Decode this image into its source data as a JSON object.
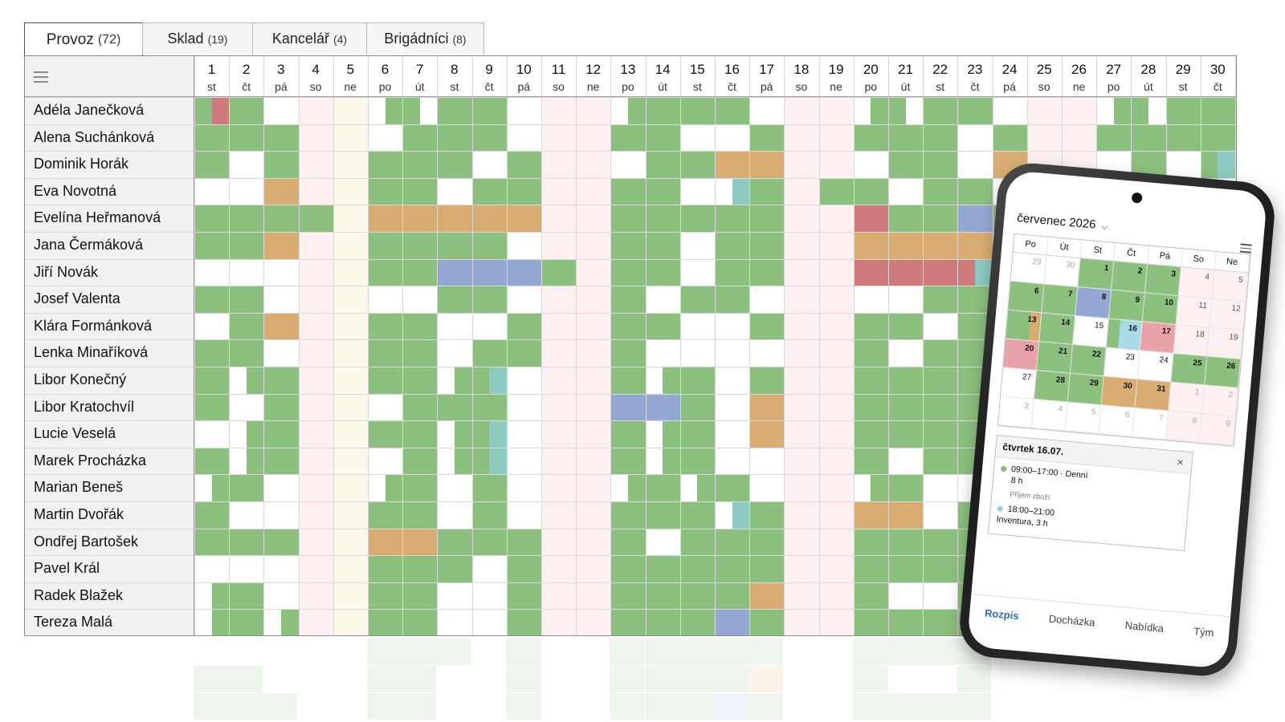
{
  "tabs": [
    {
      "label": "Provoz",
      "count": "(72)",
      "active": true
    },
    {
      "label": "Sklad",
      "count": "(19)",
      "active": false
    },
    {
      "label": "Kancelář",
      "count": "(4)",
      "active": false
    },
    {
      "label": "Brigádníci",
      "count": "(8)",
      "active": false
    }
  ],
  "grid": {
    "days": [
      {
        "num": "1",
        "wd": "st"
      },
      {
        "num": "2",
        "wd": "čt"
      },
      {
        "num": "3",
        "wd": "pá"
      },
      {
        "num": "4",
        "wd": "so"
      },
      {
        "num": "5",
        "wd": "ne"
      },
      {
        "num": "6",
        "wd": "po"
      },
      {
        "num": "7",
        "wd": "út"
      },
      {
        "num": "8",
        "wd": "st"
      },
      {
        "num": "9",
        "wd": "čt"
      },
      {
        "num": "10",
        "wd": "pá"
      },
      {
        "num": "11",
        "wd": "so"
      },
      {
        "num": "12",
        "wd": "ne"
      },
      {
        "num": "13",
        "wd": "po"
      },
      {
        "num": "14",
        "wd": "út"
      },
      {
        "num": "15",
        "wd": "st"
      },
      {
        "num": "16",
        "wd": "čt"
      },
      {
        "num": "17",
        "wd": "pá"
      },
      {
        "num": "18",
        "wd": "so"
      },
      {
        "num": "19",
        "wd": "ne"
      },
      {
        "num": "20",
        "wd": "po"
      },
      {
        "num": "21",
        "wd": "út"
      },
      {
        "num": "22",
        "wd": "st"
      },
      {
        "num": "23",
        "wd": "čt"
      },
      {
        "num": "24",
        "wd": "pá"
      },
      {
        "num": "25",
        "wd": "so"
      },
      {
        "num": "26",
        "wd": "ne"
      },
      {
        "num": "27",
        "wd": "po"
      },
      {
        "num": "28",
        "wd": "út"
      },
      {
        "num": "29",
        "wd": "st"
      },
      {
        "num": "30",
        "wd": "čt"
      }
    ],
    "colors": {
      "G": "#8cc07e",
      "O": "#d9ad72",
      "R": "#cf7b7b",
      "B": "#93a8d2",
      "T": "#8ccac2",
      "weekend": "#fcf0f0",
      "holiday": "#fcf8ea"
    },
    "rows": [
      {
        "name": "Adéla Janečková",
        "cells": [
          "HRR",
          "G",
          "",
          "",
          "",
          "gG",
          "Gg",
          "G",
          "G",
          "",
          "",
          "",
          "gG",
          "G",
          "G",
          "G",
          "",
          "",
          "",
          "gG",
          "Gg",
          "G",
          "G",
          "",
          "",
          "",
          "gG",
          "Gg",
          "G",
          "G"
        ]
      },
      {
        "name": "Alena Suchánková",
        "cells": [
          "G",
          "G",
          "G",
          "",
          "",
          "",
          "G",
          "G",
          "G",
          "",
          "",
          "",
          "G",
          "G",
          "",
          "",
          "G",
          "",
          "",
          "G",
          "G",
          "G",
          "",
          "G",
          "",
          "",
          "G",
          "G",
          "G",
          "G"
        ]
      },
      {
        "name": "Dominik Horák",
        "cells": [
          "G",
          "",
          "G",
          "",
          "",
          "G",
          "G",
          "G",
          "",
          "G",
          "",
          "",
          "",
          "G",
          "G",
          "O",
          "O",
          "",
          "",
          "",
          "G",
          "G",
          "",
          "O",
          "",
          "",
          "",
          "G",
          "",
          "GT"
        ]
      },
      {
        "name": "Eva Novotná",
        "cells": [
          "",
          "",
          "O",
          "",
          "",
          "G",
          "G",
          "",
          "G",
          "G",
          "",
          "",
          "G",
          "G",
          "",
          "gT",
          "G",
          "",
          "G",
          "G",
          "",
          "G",
          "G",
          "",
          "",
          "",
          "",
          "",
          "",
          ""
        ]
      },
      {
        "name": "Evelína Heřmanová",
        "cells": [
          "G",
          "G",
          "G",
          "G",
          "",
          "O",
          "O",
          "O",
          "O",
          "O",
          "",
          "",
          "G",
          "G",
          "G",
          "G",
          "G",
          "",
          "",
          "R",
          "G",
          "G",
          "B",
          "G",
          "",
          "",
          "",
          "",
          "",
          ""
        ]
      },
      {
        "name": "Jana Čermáková",
        "cells": [
          "G",
          "G",
          "O",
          "",
          "",
          "G",
          "G",
          "G",
          "G",
          "",
          "",
          "",
          "G",
          "G",
          "",
          "G",
          "G",
          "",
          "",
          "O",
          "O",
          "O",
          "O",
          "",
          "",
          "",
          "",
          "",
          "",
          ""
        ]
      },
      {
        "name": "Jiří Novák",
        "cells": [
          "",
          "",
          "",
          "",
          "",
          "G",
          "G",
          "B",
          "B",
          "B",
          "G",
          "",
          "G",
          "G",
          "",
          "G",
          "G",
          "",
          "",
          "R",
          "R",
          "R",
          "RT",
          "",
          "",
          "",
          "",
          "",
          "",
          ""
        ]
      },
      {
        "name": "Josef Valenta",
        "cells": [
          "G",
          "G",
          "",
          "",
          "",
          "",
          "",
          "G",
          "G",
          "",
          "",
          "",
          "G",
          "",
          "G",
          "G",
          "",
          "",
          "",
          "",
          "",
          "G",
          "G",
          "O",
          "",
          "",
          "",
          "",
          "",
          ""
        ]
      },
      {
        "name": "Klára Formánková",
        "cells": [
          "",
          "G",
          "O",
          "",
          "",
          "G",
          "G",
          "",
          "",
          "G",
          "",
          "",
          "G",
          "G",
          "",
          "",
          "G",
          "",
          "",
          "G",
          "G",
          "",
          "G",
          "",
          "",
          "",
          "",
          "",
          "",
          ""
        ]
      },
      {
        "name": "Lenka Minaříková",
        "cells": [
          "G",
          "G",
          "",
          "",
          "",
          "G",
          "G",
          "",
          "G",
          "G",
          "",
          "",
          "G",
          "",
          "",
          "",
          "",
          "",
          "",
          "G",
          "",
          "G",
          "G",
          "",
          "",
          "",
          "",
          "",
          "",
          ""
        ]
      },
      {
        "name": "Libor Konečný",
        "cells": [
          "G",
          "gG",
          "G",
          "",
          "",
          "G",
          "G",
          "gG",
          "GT",
          "",
          "",
          "",
          "G",
          "gG",
          "G",
          "",
          "G",
          "",
          "",
          "G",
          "G",
          "G",
          "G",
          "",
          "",
          "",
          "",
          "",
          "",
          ""
        ]
      },
      {
        "name": "Libor Kratochvíl",
        "cells": [
          "G",
          "",
          "G",
          "",
          "",
          "",
          "G",
          "G",
          "G",
          "",
          "",
          "",
          "B",
          "B",
          "G",
          "",
          "O",
          "",
          "",
          "G",
          "G",
          "G",
          "G",
          "",
          "",
          "",
          "",
          "",
          "",
          ""
        ]
      },
      {
        "name": "Lucie Veselá",
        "cells": [
          "",
          "gG",
          "G",
          "",
          "",
          "G",
          "G",
          "gG",
          "GT",
          "",
          "",
          "",
          "G",
          "gG",
          "G",
          "",
          "O",
          "",
          "",
          "G",
          "G",
          "G",
          "G",
          "",
          "",
          "",
          "",
          "",
          "",
          ""
        ]
      },
      {
        "name": "Marek Procházka",
        "cells": [
          "G",
          "gG",
          "G",
          "",
          "",
          "",
          "G",
          "gG",
          "GT",
          "",
          "",
          "",
          "G",
          "gG",
          "G",
          "",
          "",
          "",
          "",
          "G",
          "",
          "G",
          "GT",
          "",
          "",
          "",
          "",
          "",
          "",
          ""
        ]
      },
      {
        "name": "Marian Beneš",
        "cells": [
          "gG",
          "G",
          "",
          "",
          "",
          "gG",
          "G",
          "",
          "G",
          "",
          "",
          "",
          "gG",
          "G",
          "gG",
          "G",
          "",
          "",
          "",
          "gG",
          "G",
          "",
          "gG",
          "",
          "",
          "",
          "",
          "",
          "",
          ""
        ]
      },
      {
        "name": "Martin Dvořák",
        "cells": [
          "G",
          "",
          "",
          "",
          "",
          "G",
          "G",
          "",
          "G",
          "",
          "",
          "",
          "G",
          "G",
          "G",
          "gT",
          "G",
          "",
          "",
          "O",
          "O",
          "",
          "G",
          "",
          "",
          "",
          "",
          "",
          "",
          ""
        ]
      },
      {
        "name": "Ondřej Bartošek",
        "cells": [
          "G",
          "G",
          "G",
          "",
          "",
          "O",
          "O",
          "G",
          "G",
          "G",
          "",
          "",
          "G",
          "",
          "G",
          "G",
          "G",
          "",
          "",
          "G",
          "G",
          "G",
          "G",
          "",
          "",
          "",
          "",
          "",
          "",
          ""
        ]
      },
      {
        "name": "Pavel Král",
        "cells": [
          "",
          "",
          "",
          "",
          "",
          "G",
          "G",
          "G",
          "",
          "G",
          "",
          "",
          "G",
          "G",
          "G",
          "G",
          "G",
          "",
          "",
          "G",
          "G",
          "G",
          "G",
          "",
          "",
          "",
          "",
          "",
          "",
          ""
        ]
      },
      {
        "name": "Radek Blažek",
        "cells": [
          "gG",
          "G",
          "",
          "",
          "",
          "G",
          "G",
          "",
          "",
          "G",
          "",
          "",
          "G",
          "G",
          "G",
          "G",
          "O",
          "",
          "",
          "G",
          "",
          "",
          "G",
          "",
          "",
          "",
          "",
          "",
          "",
          ""
        ]
      },
      {
        "name": "Tereza Malá",
        "cells": [
          "gG",
          "G",
          "gG",
          "",
          "",
          "G",
          "G",
          "",
          "",
          "G",
          "",
          "",
          "G",
          "G",
          "G",
          "B",
          "G",
          "",
          "",
          "G",
          "G",
          "G",
          "G",
          "",
          "",
          "",
          "",
          "",
          "",
          ""
        ]
      }
    ]
  },
  "phone": {
    "month_label": "červenec 2026",
    "chevron_icon": "chevron-down-icon",
    "weekdays": [
      "Po",
      "Út",
      "St",
      "Čt",
      "Pá",
      "So",
      "Ne"
    ],
    "calendar": [
      [
        {
          "d": "29",
          "c": "out"
        },
        {
          "d": "30",
          "c": "out"
        },
        {
          "d": "1",
          "c": "G"
        },
        {
          "d": "2",
          "c": "G"
        },
        {
          "d": "3",
          "c": "G"
        },
        {
          "d": "4",
          "c": "we"
        },
        {
          "d": "5",
          "c": "we"
        }
      ],
      [
        {
          "d": "6",
          "c": "G"
        },
        {
          "d": "7",
          "c": "G"
        },
        {
          "d": "8",
          "c": "B"
        },
        {
          "d": "9",
          "c": "G"
        },
        {
          "d": "10",
          "c": "G"
        },
        {
          "d": "11",
          "c": "we"
        },
        {
          "d": "12",
          "c": "we"
        }
      ],
      [
        {
          "d": "13",
          "c": "GO"
        },
        {
          "d": "14",
          "c": "G"
        },
        {
          "d": "15",
          "c": ""
        },
        {
          "d": "16",
          "c": "GT"
        },
        {
          "d": "17",
          "c": "R"
        },
        {
          "d": "18",
          "c": "we"
        },
        {
          "d": "19",
          "c": "we"
        }
      ],
      [
        {
          "d": "20",
          "c": "R"
        },
        {
          "d": "21",
          "c": "G"
        },
        {
          "d": "22",
          "c": "G"
        },
        {
          "d": "23",
          "c": ""
        },
        {
          "d": "24",
          "c": ""
        },
        {
          "d": "25",
          "c": "G"
        },
        {
          "d": "26",
          "c": "G"
        }
      ],
      [
        {
          "d": "27",
          "c": ""
        },
        {
          "d": "28",
          "c": "G"
        },
        {
          "d": "29",
          "c": "G"
        },
        {
          "d": "30",
          "c": "O"
        },
        {
          "d": "31",
          "c": "O"
        },
        {
          "d": "1",
          "c": "outwe"
        },
        {
          "d": "2",
          "c": "outwe"
        }
      ],
      [
        {
          "d": "3",
          "c": "out"
        },
        {
          "d": "4",
          "c": "out"
        },
        {
          "d": "5",
          "c": "out"
        },
        {
          "d": "6",
          "c": "out"
        },
        {
          "d": "7",
          "c": "out"
        },
        {
          "d": "8",
          "c": "outwe"
        },
        {
          "d": "9",
          "c": "outwe"
        }
      ]
    ],
    "detail": {
      "title": "čtvrtek 16.07.",
      "close": "×",
      "event1_time": "09:00–17:00 · Denní",
      "event1_hours": "8 h",
      "event1_note": "Příjem zboží",
      "event2_time": "18:00–21:00",
      "event2_desc": "Inventura, 3 h"
    },
    "nav": [
      {
        "label": "Rozpis",
        "active": true
      },
      {
        "label": "Docházka",
        "active": false
      },
      {
        "label": "Nabídka",
        "active": false
      },
      {
        "label": "Tým",
        "active": false
      }
    ]
  }
}
